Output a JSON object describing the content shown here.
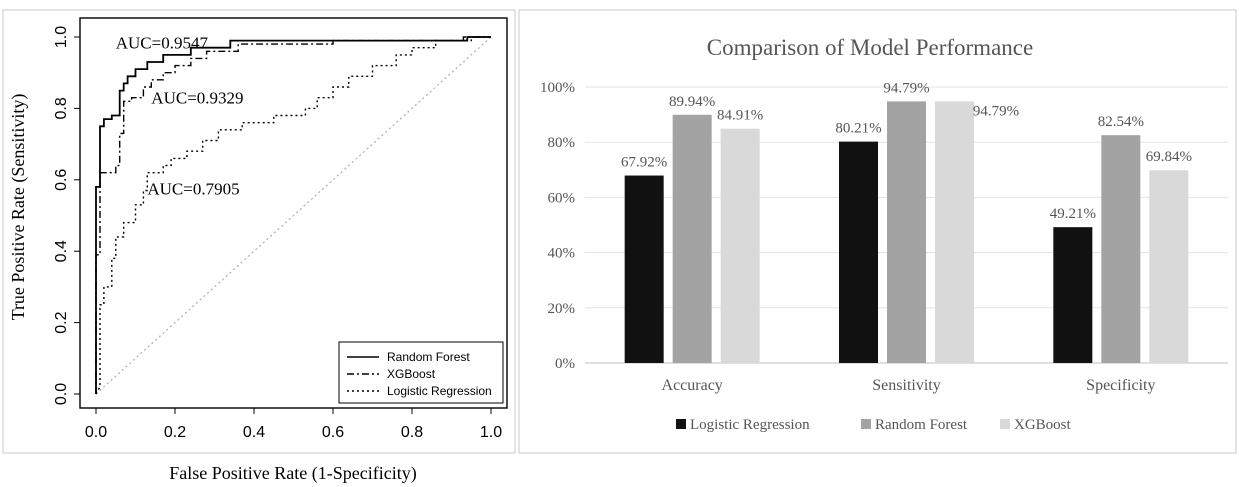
{
  "chart_data": [
    {
      "type": "line",
      "title": "",
      "xlabel": "False Positive Rate (1-Specificity)",
      "ylabel": "True Positive Rate (Sensitivity)",
      "xlim": [
        0,
        1
      ],
      "ylim": [
        0,
        1
      ],
      "xticks": [
        "0.0",
        "0.2",
        "0.4",
        "0.6",
        "0.8",
        "1.0"
      ],
      "yticks": [
        "0.0",
        "0.2",
        "0.4",
        "0.6",
        "0.8",
        "1.0"
      ],
      "grid": false,
      "legend_position": "bottom-right",
      "series": [
        {
          "name": "Random Forest",
          "line_style": "solid",
          "points": [
            [
              0,
              0
            ],
            [
              0,
              0.58
            ],
            [
              0.01,
              0.58
            ],
            [
              0.01,
              0.75
            ],
            [
              0.02,
              0.75
            ],
            [
              0.02,
              0.77
            ],
            [
              0.04,
              0.77
            ],
            [
              0.04,
              0.78
            ],
            [
              0.06,
              0.78
            ],
            [
              0.06,
              0.85
            ],
            [
              0.07,
              0.85
            ],
            [
              0.07,
              0.87
            ],
            [
              0.08,
              0.87
            ],
            [
              0.08,
              0.89
            ],
            [
              0.1,
              0.89
            ],
            [
              0.1,
              0.91
            ],
            [
              0.13,
              0.91
            ],
            [
              0.13,
              0.93
            ],
            [
              0.17,
              0.93
            ],
            [
              0.17,
              0.95
            ],
            [
              0.24,
              0.95
            ],
            [
              0.24,
              0.97
            ],
            [
              0.34,
              0.97
            ],
            [
              0.34,
              0.99
            ],
            [
              0.94,
              0.99
            ],
            [
              0.94,
              1
            ],
            [
              1,
              1
            ]
          ]
        },
        {
          "name": "XGBoost",
          "line_style": "dashdot",
          "points": [
            [
              0,
              0
            ],
            [
              0,
              0.39
            ],
            [
              0.01,
              0.39
            ],
            [
              0.01,
              0.62
            ],
            [
              0.05,
              0.62
            ],
            [
              0.05,
              0.64
            ],
            [
              0.06,
              0.64
            ],
            [
              0.06,
              0.73
            ],
            [
              0.07,
              0.73
            ],
            [
              0.07,
              0.82
            ],
            [
              0.09,
              0.82
            ],
            [
              0.09,
              0.83
            ],
            [
              0.12,
              0.83
            ],
            [
              0.12,
              0.86
            ],
            [
              0.14,
              0.86
            ],
            [
              0.14,
              0.88
            ],
            [
              0.17,
              0.88
            ],
            [
              0.17,
              0.9
            ],
            [
              0.2,
              0.9
            ],
            [
              0.2,
              0.92
            ],
            [
              0.24,
              0.92
            ],
            [
              0.24,
              0.94
            ],
            [
              0.28,
              0.94
            ],
            [
              0.28,
              0.96
            ],
            [
              0.36,
              0.96
            ],
            [
              0.36,
              0.98
            ],
            [
              0.6,
              0.98
            ],
            [
              0.6,
              0.99
            ],
            [
              0.93,
              0.99
            ],
            [
              0.93,
              1
            ],
            [
              1,
              1
            ]
          ]
        },
        {
          "name": "Logistic Regression",
          "line_style": "dotted",
          "points": [
            [
              0,
              0
            ],
            [
              0.01,
              0.02
            ],
            [
              0.01,
              0.25
            ],
            [
              0.02,
              0.25
            ],
            [
              0.02,
              0.3
            ],
            [
              0.04,
              0.3
            ],
            [
              0.04,
              0.38
            ],
            [
              0.05,
              0.38
            ],
            [
              0.05,
              0.44
            ],
            [
              0.07,
              0.44
            ],
            [
              0.07,
              0.48
            ],
            [
              0.1,
              0.48
            ],
            [
              0.1,
              0.53
            ],
            [
              0.12,
              0.53
            ],
            [
              0.12,
              0.57
            ],
            [
              0.13,
              0.57
            ],
            [
              0.13,
              0.62
            ],
            [
              0.17,
              0.62
            ],
            [
              0.17,
              0.64
            ],
            [
              0.19,
              0.64
            ],
            [
              0.19,
              0.66
            ],
            [
              0.23,
              0.66
            ],
            [
              0.23,
              0.68
            ],
            [
              0.27,
              0.68
            ],
            [
              0.27,
              0.71
            ],
            [
              0.31,
              0.71
            ],
            [
              0.31,
              0.74
            ],
            [
              0.37,
              0.74
            ],
            [
              0.37,
              0.76
            ],
            [
              0.45,
              0.76
            ],
            [
              0.45,
              0.78
            ],
            [
              0.53,
              0.78
            ],
            [
              0.53,
              0.8
            ],
            [
              0.56,
              0.8
            ],
            [
              0.56,
              0.83
            ],
            [
              0.6,
              0.83
            ],
            [
              0.6,
              0.86
            ],
            [
              0.64,
              0.86
            ],
            [
              0.64,
              0.89
            ],
            [
              0.7,
              0.89
            ],
            [
              0.7,
              0.92
            ],
            [
              0.76,
              0.92
            ],
            [
              0.76,
              0.95
            ],
            [
              0.8,
              0.95
            ],
            [
              0.8,
              0.97
            ],
            [
              0.86,
              0.97
            ],
            [
              0.86,
              0.99
            ],
            [
              0.95,
              0.99
            ],
            [
              0.95,
              1
            ],
            [
              1,
              1
            ]
          ]
        }
      ],
      "reference_line": {
        "from": [
          0,
          0
        ],
        "to": [
          1,
          1
        ],
        "line_style": "dotted",
        "color": "#b3b3b3"
      },
      "annotations": [
        {
          "text": "AUC=0.9547",
          "x": 0.05,
          "y": 0.985
        },
        {
          "text": "AUC=0.9329",
          "x": 0.14,
          "y": 0.83
        },
        {
          "text": "AUC=0.7905",
          "x": 0.13,
          "y": 0.575
        }
      ]
    },
    {
      "type": "bar",
      "title": "Comparison of Model Performance",
      "xlabel": "",
      "ylabel": "",
      "categories": [
        "Accuracy",
        "Sensitivity",
        "Specificity"
      ],
      "ylim": [
        0,
        100
      ],
      "yticks": [
        "0%",
        "20%",
        "40%",
        "60%",
        "80%",
        "100%"
      ],
      "grid": true,
      "legend_position": "bottom",
      "series": [
        {
          "name": "Logistic Regression",
          "color": "#111111",
          "values": [
            67.92,
            80.21,
            49.21
          ],
          "labels": [
            "67.92%",
            "80.21%",
            "49.21%"
          ]
        },
        {
          "name": "Random Forest",
          "color": "#a3a3a3",
          "values": [
            89.94,
            94.79,
            82.54
          ],
          "labels": [
            "89.94%",
            "94.79%",
            "82.54%"
          ]
        },
        {
          "name": "XGBoost",
          "color": "#d9d9d9",
          "values": [
            84.91,
            94.79,
            69.84
          ],
          "labels": [
            "84.91%",
            "94.79%",
            "69.84%"
          ]
        }
      ]
    }
  ]
}
